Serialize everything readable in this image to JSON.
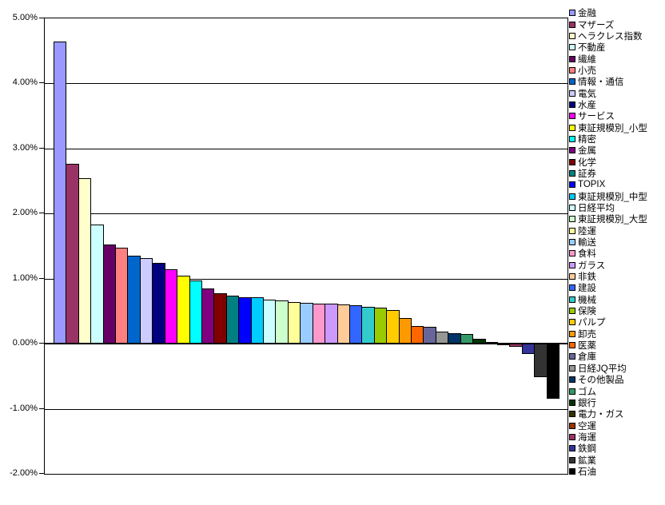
{
  "chart_data": {
    "type": "bar",
    "title": "",
    "xlabel": "",
    "ylabel": "",
    "ylim": [
      -2.0,
      5.0
    ],
    "ytick_interval": 1.0,
    "yticks": [
      5,
      4,
      3,
      2,
      1,
      0,
      -1,
      -2
    ],
    "ytick_labels": [
      "5.00%",
      "4.00%",
      "3.00%",
      "2.00%",
      "1.00%",
      "0.00%",
      "-1.00%",
      "-2.00%"
    ],
    "grid": true,
    "legend_position": "right",
    "bar_outline_color": "#000000",
    "points": [
      {
        "label": "金融",
        "value": 4.65,
        "color": "#9999FF"
      },
      {
        "label": "マザーズ",
        "value": 2.76,
        "color": "#993366"
      },
      {
        "label": "ヘラクレス指数",
        "value": 2.54,
        "color": "#FFFFCC"
      },
      {
        "label": "不動産",
        "value": 1.83,
        "color": "#CCFFFF"
      },
      {
        "label": "繊維",
        "value": 1.52,
        "color": "#660066"
      },
      {
        "label": "小売",
        "value": 1.48,
        "color": "#FF8080"
      },
      {
        "label": "情報・通信",
        "value": 1.35,
        "color": "#0066CC"
      },
      {
        "label": "電気",
        "value": 1.31,
        "color": "#CCCCFF"
      },
      {
        "label": "水産",
        "value": 1.24,
        "color": "#000080"
      },
      {
        "label": "サービス",
        "value": 1.15,
        "color": "#FF00FF"
      },
      {
        "label": "東証規模別_小型",
        "value": 1.04,
        "color": "#FFFF00"
      },
      {
        "label": "精密",
        "value": 0.97,
        "color": "#00FFFF"
      },
      {
        "label": "金属",
        "value": 0.85,
        "color": "#800080"
      },
      {
        "label": "化学",
        "value": 0.77,
        "color": "#800000"
      },
      {
        "label": "証券",
        "value": 0.74,
        "color": "#008080"
      },
      {
        "label": "TOPIX",
        "value": 0.72,
        "color": "#0000FF"
      },
      {
        "label": "東証規模別_中型",
        "value": 0.71,
        "color": "#00CCFF"
      },
      {
        "label": "日経平均",
        "value": 0.68,
        "color": "#CCFFFF"
      },
      {
        "label": "東証規模別_大型",
        "value": 0.66,
        "color": "#CCFFCC"
      },
      {
        "label": "陸運",
        "value": 0.64,
        "color": "#FFFF99"
      },
      {
        "label": "輸送",
        "value": 0.63,
        "color": "#99CCFF"
      },
      {
        "label": "食料",
        "value": 0.62,
        "color": "#FF99CC"
      },
      {
        "label": "ガラス",
        "value": 0.61,
        "color": "#CC99FF"
      },
      {
        "label": "非鉄",
        "value": 0.6,
        "color": "#FFCC99"
      },
      {
        "label": "建設",
        "value": 0.59,
        "color": "#3366FF"
      },
      {
        "label": "機械",
        "value": 0.57,
        "color": "#33CCCC"
      },
      {
        "label": "保険",
        "value": 0.55,
        "color": "#99CC00"
      },
      {
        "label": "パルプ",
        "value": 0.52,
        "color": "#FFCC00"
      },
      {
        "label": "卸売",
        "value": 0.4,
        "color": "#FF9900"
      },
      {
        "label": "医薬",
        "value": 0.27,
        "color": "#FF6600"
      },
      {
        "label": "倉庫",
        "value": 0.26,
        "color": "#666699"
      },
      {
        "label": "日経JQ平均",
        "value": 0.18,
        "color": "#969696"
      },
      {
        "label": "その他製品",
        "value": 0.16,
        "color": "#003366"
      },
      {
        "label": "ゴム",
        "value": 0.15,
        "color": "#339966"
      },
      {
        "label": "銀行",
        "value": 0.07,
        "color": "#003300"
      },
      {
        "label": "電力・ガス",
        "value": 0.03,
        "color": "#333300"
      },
      {
        "label": "空運",
        "value": -0.01,
        "color": "#993300"
      },
      {
        "label": "海運",
        "value": -0.03,
        "color": "#993366"
      },
      {
        "label": "鉄鋼",
        "value": -0.15,
        "color": "#333399"
      },
      {
        "label": "鉱業",
        "value": -0.5,
        "color": "#333333"
      },
      {
        "label": "石油",
        "value": -0.83,
        "color": "#000000"
      }
    ]
  },
  "colors": {
    "background": "#FFFFFF",
    "plot_border": "#000000",
    "gridline": "#000000",
    "axis_text": "#000000"
  }
}
